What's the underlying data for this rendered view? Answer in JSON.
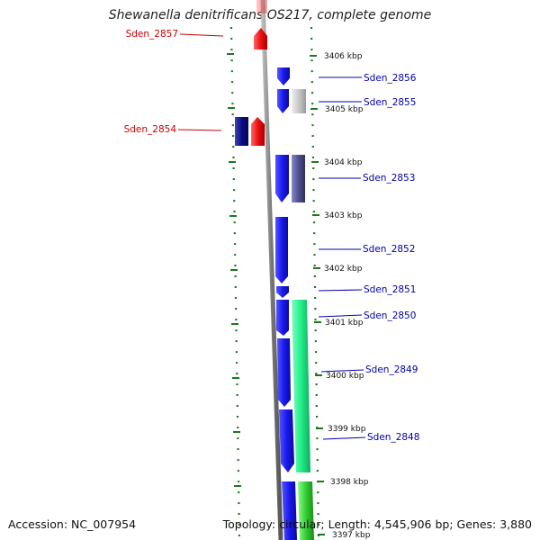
{
  "title": "Shewanella denitrificans OS217, complete genome",
  "accession": "Accession: NC_007954",
  "topology": "Topology: circular; Length: 4,545,906 bp; Genes: 3,880",
  "colors": {
    "fwd_strand": "#1a1aee",
    "fwd_dark": "#0c0c88",
    "rev_strand": "#ee1111",
    "rna_green": "#22ee88",
    "gray_feature": "#c8c8c8",
    "slate_feature": "#505090",
    "ruler_green": "#1a7a1a",
    "backbone": "#888888",
    "label_blue": "#0000aa",
    "label_red": "#cc0000"
  },
  "scale": {
    "unit": "kbp",
    "ticks": [
      "3406 kbp",
      "3405 kbp",
      "3404 kbp",
      "3403 kbp",
      "3402 kbp",
      "3401 kbp",
      "3400 kbp",
      "3399 kbp",
      "3398 kbp",
      "3397 kbp"
    ]
  },
  "genes": [
    {
      "id": "Sden_2857",
      "strand": "reverse",
      "color": "#ee1111"
    },
    {
      "id": "Sden_2856",
      "strand": "forward",
      "color": "#1a1aee"
    },
    {
      "id": "Sden_2855",
      "strand": "forward",
      "color": "#1a1aee"
    },
    {
      "id": "Sden_2854",
      "strand": "reverse",
      "color": "#ee1111"
    },
    {
      "id": "Sden_2853",
      "strand": "forward",
      "color": "#1a1aee"
    },
    {
      "id": "Sden_2852",
      "strand": "forward",
      "color": "#1a1aee"
    },
    {
      "id": "Sden_2851",
      "strand": "forward",
      "color": "#1a1aee"
    },
    {
      "id": "Sden_2850",
      "strand": "forward",
      "color": "#1a1aee"
    },
    {
      "id": "Sden_2849",
      "strand": "forward",
      "color": "#1a1aee"
    },
    {
      "id": "Sden_2848",
      "strand": "forward",
      "color": "#1a1aee"
    }
  ]
}
